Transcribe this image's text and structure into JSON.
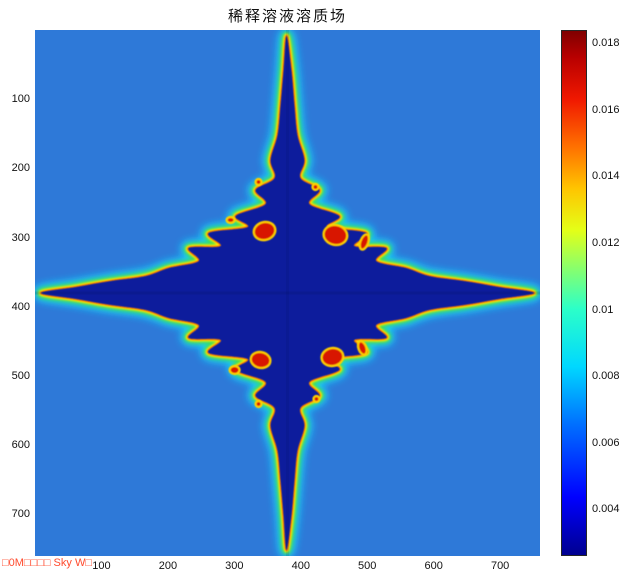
{
  "figure": {
    "watermark": "□0M□□□□ Sky W□"
  },
  "chart_data": {
    "type": "heatmap",
    "title": "稀释溶液溶质场",
    "xlabel": "",
    "ylabel": "",
    "x_ticks": [
      100,
      200,
      300,
      400,
      500,
      600,
      700
    ],
    "y_ticks": [
      100,
      200,
      300,
      400,
      500,
      600,
      700
    ],
    "x_range": [
      0,
      760
    ],
    "y_range": [
      0,
      760
    ],
    "grid": false,
    "legend": "none",
    "colorbar": {
      "position": "right",
      "colormap": "jet",
      "min": 0.0026,
      "max": 0.0184,
      "tick_values": [
        0.018,
        0.016,
        0.014,
        0.012,
        0.01,
        0.008,
        0.006,
        0.004
      ],
      "tick_labels": [
        "0.018",
        "0.016",
        "0.014",
        "0.012",
        "0.01",
        "0.008",
        "0.006",
        "0.004"
      ],
      "stops": [
        [
          "#00008F",
          0
        ],
        [
          "#0000FF",
          0.11
        ],
        [
          "#0070FF",
          0.25
        ],
        [
          "#00D8FF",
          0.36
        ],
        [
          "#2CFFC8",
          0.47
        ],
        [
          "#8CFF69",
          0.55
        ],
        [
          "#E4FF17",
          0.62
        ],
        [
          "#FFC400",
          0.7
        ],
        [
          "#FF7000",
          0.78
        ],
        [
          "#F01800",
          0.87
        ],
        [
          "#B80000",
          0.95
        ],
        [
          "#800000",
          1
        ]
      ]
    },
    "colors": {
      "background": "#2e79d8",
      "interior": "#0a1a9c",
      "rim_cyan": "#18dcff",
      "rim_green": "#3ee04e",
      "rim_yellow": "#ffe800",
      "rim_orange": "#ff7d00",
      "pocket_red": "#d81800",
      "pocket_rim": "#ffcf00"
    },
    "field": {
      "note": "Dark four-armed dendrite (solute-depleted solid) in a lighter blue melt; bright cyan-green-yellow-orange rim marks high solute concentration along the interface; red pockets of trapped high-concentration liquid sit near the inner shoulders of the arms.",
      "profile": [
        [
          252,
          6
        ],
        [
          257,
          40
        ],
        [
          260,
          75
        ],
        [
          263,
          105
        ],
        [
          270,
          130
        ],
        [
          266,
          148
        ],
        [
          285,
          160
        ],
        [
          275,
          174
        ],
        [
          305,
          186
        ],
        [
          293,
          197
        ],
        [
          332,
          203
        ],
        [
          320,
          216
        ],
        [
          352,
          218
        ],
        [
          342,
          231
        ],
        [
          372,
          238
        ],
        [
          395,
          246
        ],
        [
          430,
          251
        ],
        [
          465,
          257
        ],
        [
          500,
          263
        ]
      ],
      "cross_center": [
        253,
        263
      ],
      "pockets": [
        [
          230,
          201,
          11,
          9,
          -15
        ],
        [
          301,
          205,
          12,
          10,
          12
        ],
        [
          330,
          212,
          4,
          8,
          20
        ],
        [
          196,
          190,
          4,
          3,
          0
        ],
        [
          224,
          152,
          3,
          3,
          0
        ],
        [
          281,
          157,
          3,
          3,
          0
        ],
        [
          226,
          330,
          10,
          8,
          12
        ],
        [
          298,
          327,
          11,
          9,
          -10
        ],
        [
          328,
          318,
          4,
          7,
          -20
        ],
        [
          200,
          340,
          5,
          4,
          0
        ],
        [
          224,
          374,
          3,
          3,
          0
        ],
        [
          282,
          369,
          3,
          3,
          0
        ]
      ]
    }
  }
}
